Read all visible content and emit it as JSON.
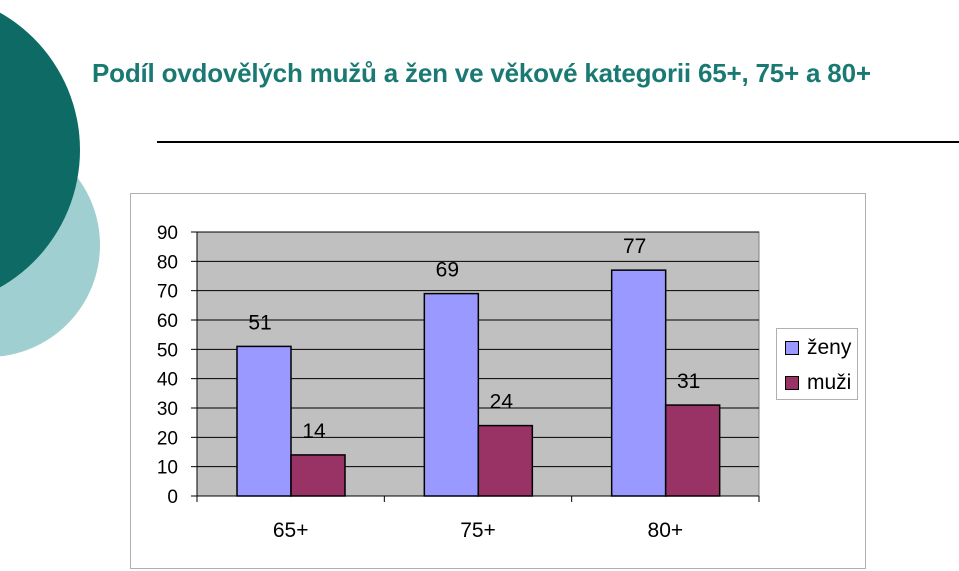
{
  "slide": {
    "title": "Podíl ovdovělých mužů a žen ve věkové kategorii 65+, 75+ a 80+"
  },
  "colors": {
    "deco_dark": "#0e6a64",
    "deco_light": "#9fcfd0",
    "title": "#1a7a73",
    "plot_bg": "#c0c0c0",
    "series_zeny": "#9999ff",
    "series_muzi": "#993366"
  },
  "chart_data": {
    "type": "bar",
    "categories": [
      "65+",
      "75+",
      "80+"
    ],
    "series": [
      {
        "name": "ženy",
        "values": [
          51,
          69,
          77
        ],
        "color": "#9999ff"
      },
      {
        "name": "muži",
        "values": [
          14,
          24,
          31
        ],
        "color": "#993366"
      }
    ],
    "ylim": [
      0,
      90
    ],
    "yticks": [
      0,
      10,
      20,
      30,
      40,
      50,
      60,
      70,
      80,
      90
    ],
    "title": "",
    "xlabel": "",
    "ylabel": "",
    "grid": true,
    "legend": "right",
    "data_labels": true
  }
}
